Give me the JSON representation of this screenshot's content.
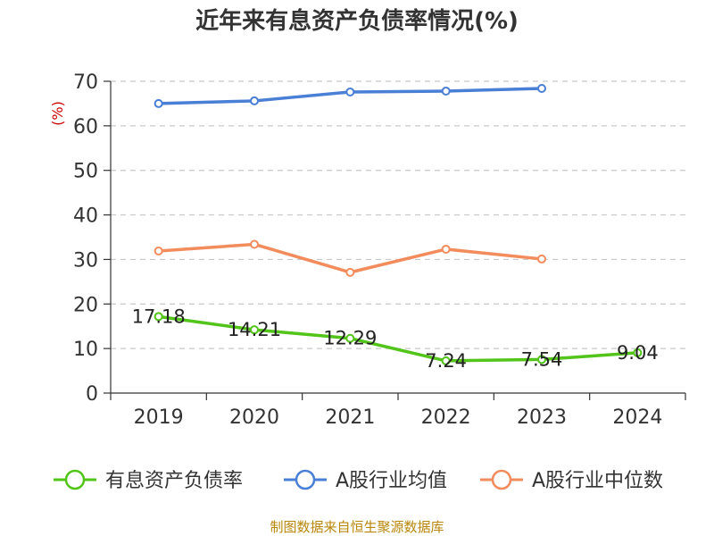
{
  "chart_data": {
    "type": "line",
    "title": "近年来有息资产负债率情况(%)",
    "ylabel": "(%)",
    "categories": [
      "2019",
      "2020",
      "2021",
      "2022",
      "2023",
      "2024"
    ],
    "yticks": [
      "0",
      "10",
      "20",
      "30",
      "40",
      "50",
      "60",
      "70"
    ],
    "ylim": [
      0,
      70
    ],
    "grid": true,
    "legend_position": "bottom",
    "series": [
      {
        "name": "有息资产负债率",
        "color": "#52c41a",
        "values": [
          17.18,
          14.21,
          12.29,
          7.24,
          7.54,
          9.04
        ],
        "labels": [
          "17.18",
          "14.21",
          "12.29",
          "7.24",
          "7.54",
          "9.04"
        ]
      },
      {
        "name": "A股行业均值",
        "color": "#4a7fd6",
        "values": [
          65.0,
          65.6,
          67.6,
          67.8,
          68.4,
          null
        ]
      },
      {
        "name": "A股行业中位数",
        "color": "#f28c5c",
        "values": [
          31.9,
          33.4,
          27.1,
          32.3,
          30.1,
          null
        ]
      }
    ],
    "source": "制图数据来自恒生聚源数据库"
  }
}
